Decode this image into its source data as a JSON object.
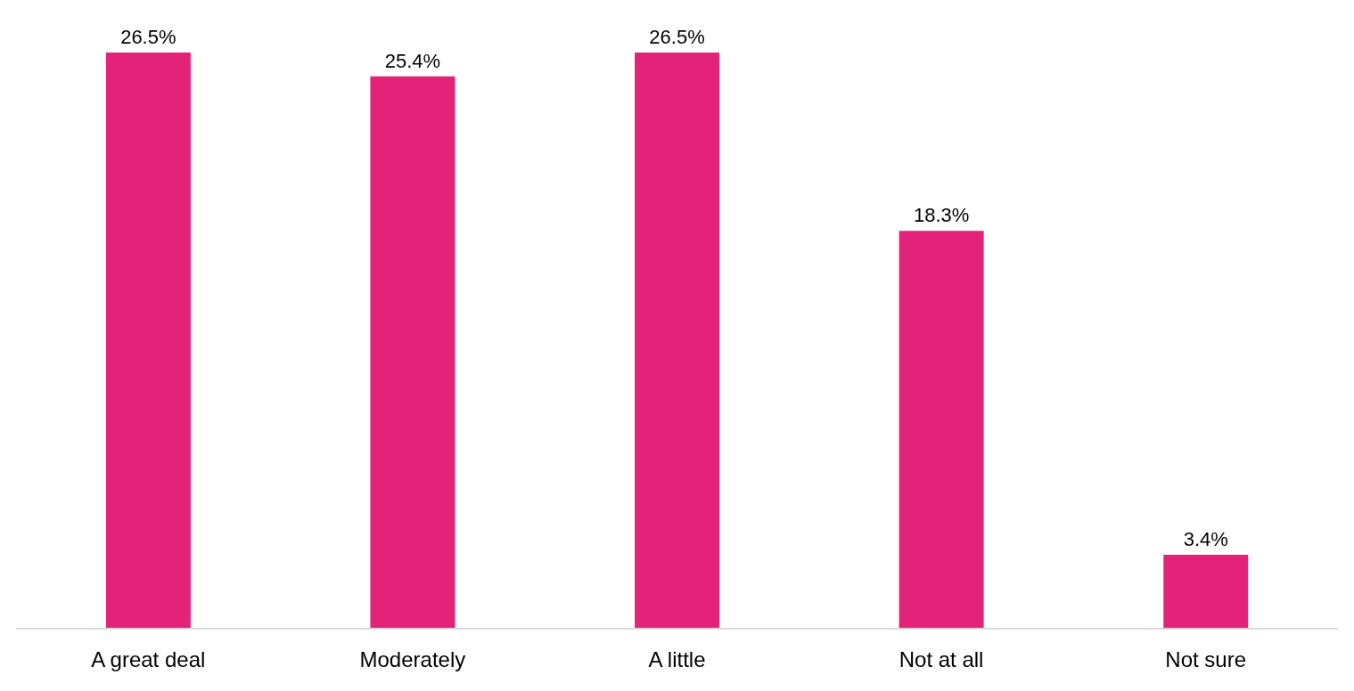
{
  "chart_data": {
    "type": "bar",
    "categories": [
      "A great deal",
      "Moderately",
      "A little",
      "Not at all",
      "Not sure"
    ],
    "values": [
      26.5,
      25.4,
      26.5,
      18.3,
      3.4
    ],
    "value_labels": [
      "26.5%",
      "25.4%",
      "26.5%",
      "18.3%",
      "3.4%"
    ],
    "color": "#e3237a"
  }
}
